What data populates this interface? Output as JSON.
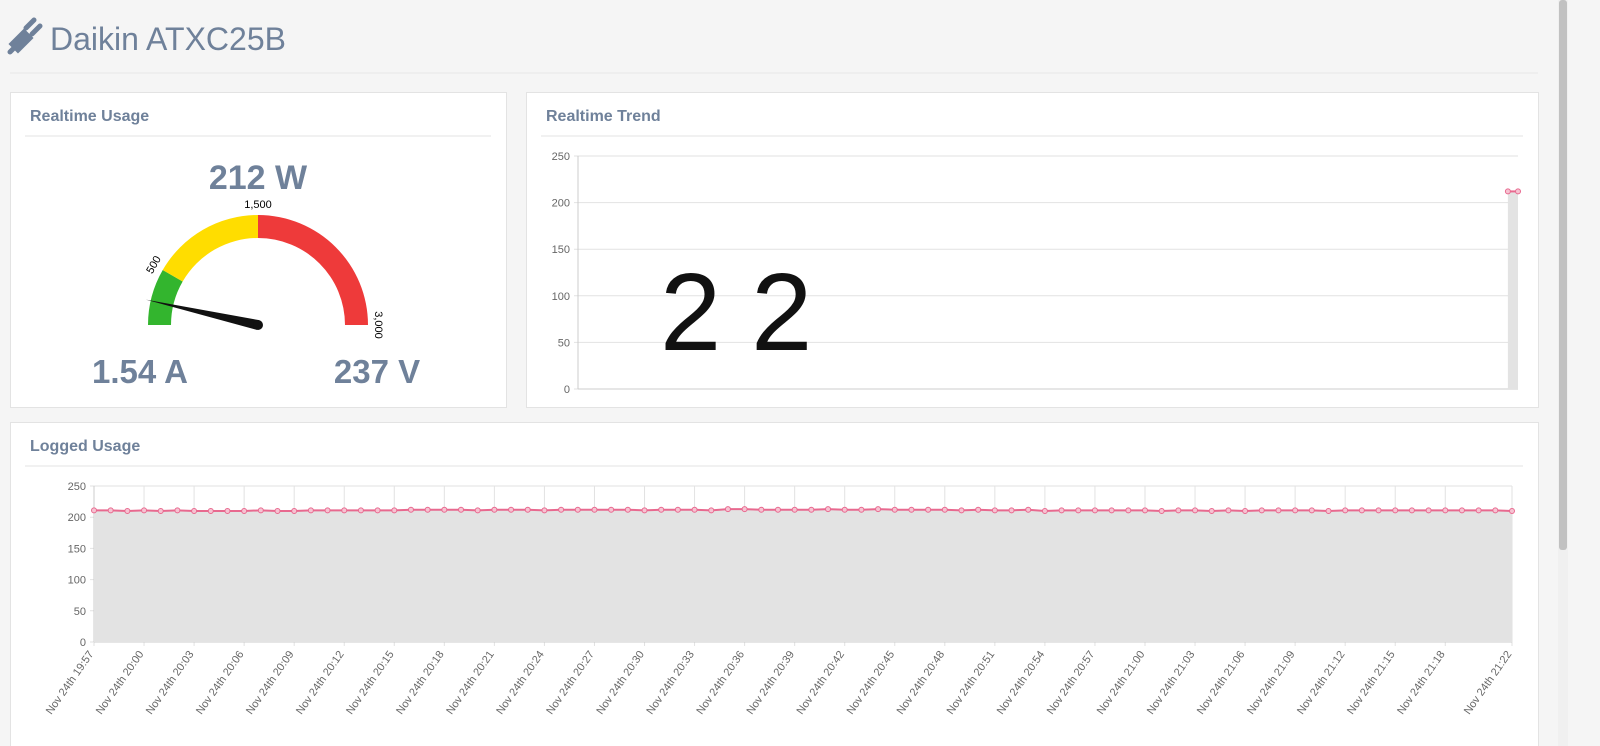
{
  "header": {
    "title": "Daikin ATXC25B"
  },
  "chart_data": [
    {
      "type": "gauge",
      "title": "Realtime Usage",
      "value": 212,
      "value_label": "212 W",
      "current": "1.54 A",
      "voltage": "237 V",
      "range": [
        0,
        3000
      ],
      "ticks": [
        500,
        {
          "value": 1500,
          "label": "1,500"
        },
        {
          "value": 3000,
          "label": "3,000"
        }
      ],
      "bands": [
        {
          "range": [
            0,
            500
          ],
          "color": "#33b52e"
        },
        {
          "range": [
            500,
            1500
          ],
          "color": "#ffdd00"
        },
        {
          "range": [
            1500,
            3000
          ],
          "color": "#ee3a3a"
        }
      ]
    },
    {
      "type": "line",
      "title": "Realtime Trend",
      "annotation": "22",
      "series": [
        {
          "color": "#e8698f",
          "values": [
            null,
            null,
            null,
            null,
            null,
            null,
            null,
            null,
            null,
            null,
            null,
            null,
            null,
            null,
            null,
            null,
            null,
            null,
            null,
            null,
            null,
            null,
            null,
            null,
            null,
            null,
            null,
            null,
            null,
            null,
            null,
            null,
            null,
            null,
            null,
            null,
            null,
            null,
            null,
            null,
            null,
            null,
            null,
            null,
            null,
            null,
            null,
            null,
            null,
            null,
            null,
            null,
            null,
            null,
            null,
            null,
            null,
            null,
            null,
            null,
            null,
            null,
            null,
            null,
            null,
            null,
            null,
            null,
            null,
            null,
            null,
            null,
            null,
            null,
            null,
            null,
            null,
            null,
            null,
            null,
            null,
            null,
            null,
            null,
            null,
            null,
            null,
            null,
            null,
            null,
            null,
            null,
            212,
            212
          ]
        }
      ],
      "ylim": [
        0,
        250
      ],
      "yticks": [
        0,
        50,
        100,
        150,
        200,
        250
      ],
      "grid": true
    },
    {
      "type": "line",
      "title": "Logged Usage",
      "categories": [
        "Nov 24th 19:57",
        null,
        null,
        "Nov 24th 20:00",
        null,
        null,
        "Nov 24th 20:03",
        null,
        null,
        "Nov 24th 20:06",
        null,
        null,
        "Nov 24th 20:09",
        null,
        null,
        "Nov 24th 20:12",
        null,
        null,
        "Nov 24th 20:15",
        null,
        null,
        "Nov 24th 20:18",
        null,
        null,
        "Nov 24th 20:21",
        null,
        null,
        "Nov 24th 20:24",
        null,
        null,
        "Nov 24th 20:27",
        null,
        null,
        "Nov 24th 20:30",
        null,
        null,
        "Nov 24th 20:33",
        null,
        null,
        "Nov 24th 20:36",
        null,
        null,
        "Nov 24th 20:39",
        null,
        null,
        "Nov 24th 20:42",
        null,
        null,
        "Nov 24th 20:45",
        null,
        null,
        "Nov 24th 20:48",
        null,
        null,
        "Nov 24th 20:51",
        null,
        null,
        "Nov 24th 20:54",
        null,
        null,
        "Nov 24th 20:57",
        null,
        null,
        "Nov 24th 21:00",
        null,
        null,
        "Nov 24th 21:03",
        null,
        null,
        "Nov 24th 21:06",
        null,
        null,
        "Nov 24th 21:09",
        null,
        null,
        "Nov 24th 21:12",
        null,
        null,
        "Nov 24th 21:15",
        null,
        null,
        "Nov 24th 21:18",
        null,
        null,
        null,
        "Nov 24th 21:22"
      ],
      "series": [
        {
          "color": "#e8698f",
          "values": [
            211,
            211,
            210,
            211,
            210,
            211,
            210,
            210,
            210,
            210,
            211,
            210,
            210,
            211,
            211,
            211,
            211,
            211,
            211,
            212,
            212,
            212,
            212,
            211,
            212,
            212,
            212,
            211,
            212,
            212,
            212,
            212,
            212,
            211,
            212,
            212,
            212,
            211,
            213,
            213,
            212,
            212,
            212,
            212,
            213,
            212,
            212,
            213,
            212,
            212,
            212,
            212,
            211,
            212,
            211,
            211,
            212,
            210,
            211,
            211,
            211,
            211,
            211,
            211,
            210,
            211,
            211,
            210,
            211,
            210,
            211,
            211,
            211,
            211,
            210,
            211,
            211,
            211,
            211,
            211,
            211,
            211,
            211,
            211,
            211,
            210
          ]
        }
      ],
      "ylim": [
        0,
        250
      ],
      "yticks": [
        0,
        50,
        100,
        150,
        200,
        250
      ],
      "grid": true
    }
  ]
}
